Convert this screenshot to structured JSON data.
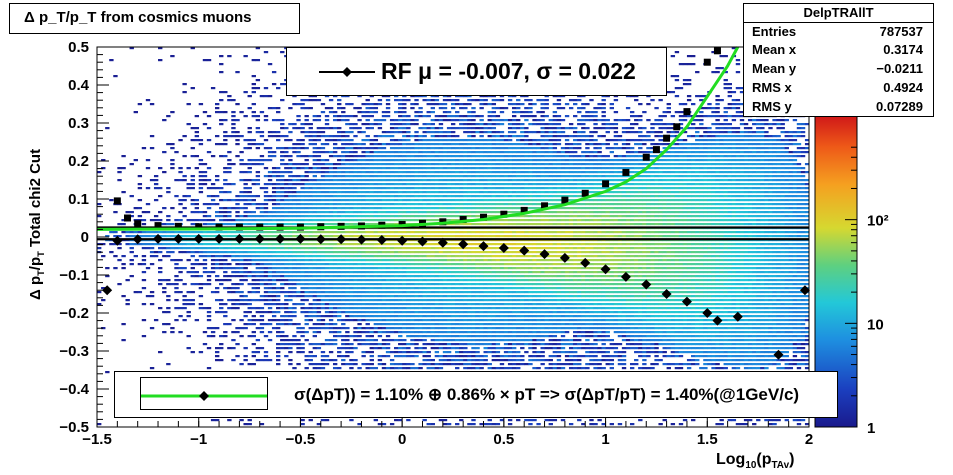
{
  "title": "Δ p_T/p_T from cosmics muons",
  "stats": {
    "name": "DelpTRAllT",
    "rows": [
      {
        "label": "Entries",
        "value": "787537"
      },
      {
        "label": "Mean x",
        "value": "0.3174"
      },
      {
        "label": "Mean y",
        "value": "−0.0211"
      },
      {
        "label": "RMS x",
        "value": "0.4924"
      },
      {
        "label": "RMS y",
        "value": "0.07289"
      }
    ]
  },
  "legend_top": "RF μ = -0.007, σ =   0.022",
  "legend_bottom": "σ(ΔpT)) =  1.10% ⊕  0.86% × pT => σ(ΔpT/pT) =  1.40%(@1GeV/c)",
  "axis_labels": {
    "y_main": "Δ p",
    "y_sub1": "T",
    "y_mid": "/p",
    "y_sub2": "T",
    "y_suffix": "   Total chi2 Cut",
    "x_main": "Log",
    "x_sub1": "10",
    "x_paren": "(p",
    "x_sub2": "TAv",
    "x_close": ")"
  },
  "colors": {
    "fit_line": "#22dd22",
    "markers": "#000000",
    "palette_low": "#1a1a8c",
    "palette_high": "#d01818"
  },
  "chart_data": {
    "type": "heatmap",
    "xlim": [
      -1.5,
      2.0
    ],
    "ylim": [
      -0.5,
      0.5
    ],
    "x_ticks": [
      "−1.5",
      "−1",
      "−0.5",
      "0",
      "0.5",
      "1",
      "1.5",
      "2"
    ],
    "x_tick_values": [
      -1.5,
      -1,
      -0.5,
      0,
      0.5,
      1,
      1.5,
      2
    ],
    "y_ticks": [
      "−0.5",
      "−0.4",
      "−0.3",
      "−0.2",
      "−0.1",
      "0",
      "0.1",
      "0.2",
      "0.3",
      "0.4",
      "0.5"
    ],
    "y_tick_values": [
      -0.5,
      -0.4,
      -0.3,
      -0.2,
      -0.1,
      0,
      0.1,
      0.2,
      0.3,
      0.4,
      0.5
    ],
    "colorbar": {
      "scale": "log",
      "range": [
        1,
        1000
      ],
      "ticks": [
        "1",
        "10",
        "10²"
      ],
      "tick_values": [
        1,
        10,
        100
      ]
    },
    "horizontal_lines": [
      0.025,
      -0.006
    ],
    "series": [
      {
        "marker": "square",
        "x": [
          -1.4,
          -1.35,
          -1.3,
          -1.2,
          -1.1,
          -1.0,
          -0.9,
          -0.8,
          -0.7,
          -0.6,
          -0.5,
          -0.4,
          -0.3,
          -0.2,
          -0.1,
          0.0,
          0.1,
          0.2,
          0.3,
          0.4,
          0.5,
          0.6,
          0.7,
          0.8,
          0.9,
          1.0,
          1.1,
          1.2,
          1.25,
          1.3,
          1.35,
          1.4,
          1.5,
          1.55
        ],
        "y": [
          0.095,
          0.05,
          0.035,
          0.03,
          0.028,
          0.027,
          0.026,
          0.026,
          0.026,
          0.026,
          0.026,
          0.027,
          0.028,
          0.029,
          0.031,
          0.033,
          0.036,
          0.04,
          0.046,
          0.052,
          0.06,
          0.07,
          0.082,
          0.097,
          0.115,
          0.14,
          0.17,
          0.21,
          0.23,
          0.26,
          0.29,
          0.33,
          0.46,
          0.49
        ]
      },
      {
        "marker": "diamond",
        "x": [
          -1.45,
          -1.4,
          -1.3,
          -1.2,
          -1.1,
          -1.0,
          -0.9,
          -0.8,
          -0.7,
          -0.6,
          -0.5,
          -0.4,
          -0.3,
          -0.2,
          -0.1,
          0.0,
          0.1,
          0.2,
          0.3,
          0.4,
          0.5,
          0.6,
          0.7,
          0.8,
          0.9,
          1.0,
          1.1,
          1.2,
          1.3,
          1.4,
          1.5,
          1.55,
          1.65,
          1.85,
          1.98
        ],
        "y": [
          -0.14,
          -0.01,
          -0.006,
          -0.005,
          -0.005,
          -0.005,
          -0.005,
          -0.005,
          -0.005,
          -0.005,
          -0.005,
          -0.006,
          -0.006,
          -0.007,
          -0.008,
          -0.01,
          -0.012,
          -0.015,
          -0.019,
          -0.024,
          -0.029,
          -0.036,
          -0.045,
          -0.055,
          -0.068,
          -0.085,
          -0.105,
          -0.125,
          -0.15,
          -0.17,
          -0.2,
          -0.22,
          -0.21,
          -0.31,
          -0.14
        ]
      }
    ],
    "fit_curve": {
      "x": [
        -1.5,
        -1.0,
        -0.5,
        0.0,
        0.2,
        0.4,
        0.6,
        0.8,
        1.0,
        1.1,
        1.2,
        1.3,
        1.4,
        1.5,
        1.6,
        1.65
      ],
      "y": [
        0.02,
        0.021,
        0.023,
        0.03,
        0.036,
        0.046,
        0.062,
        0.085,
        0.12,
        0.145,
        0.18,
        0.23,
        0.29,
        0.37,
        0.45,
        0.5
      ]
    }
  }
}
